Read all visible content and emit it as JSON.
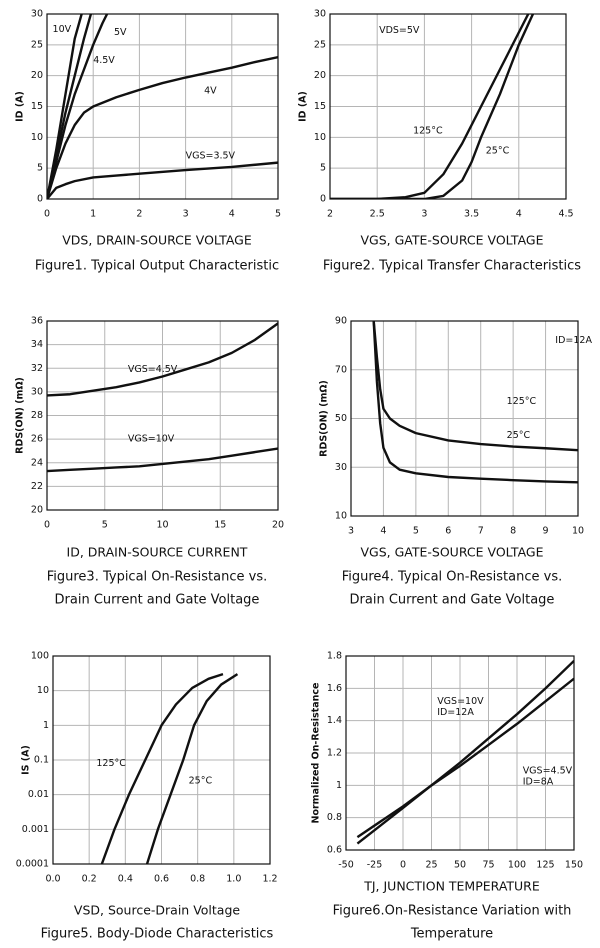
{
  "chart_data": [
    {
      "type": "line",
      "x_label": "VDS, DRAIN-SOURCE VOLTAGE",
      "y_label": "ID (A)",
      "caption": [
        "Figure1. Typical Output Characteristic"
      ],
      "xlim": [
        0,
        5
      ],
      "ylim": [
        0,
        30
      ],
      "xticks": [
        0,
        1,
        2,
        3,
        4,
        5
      ],
      "yticks": [
        0,
        5,
        10,
        15,
        20,
        25,
        30
      ],
      "grid": true,
      "color": "#111111",
      "series": [
        {
          "name": "10V",
          "x": [
            0,
            0.2,
            0.4,
            0.6,
            0.75
          ],
          "values": [
            0,
            8,
            17,
            26,
            30
          ]
        },
        {
          "name": "5V",
          "x": [
            0,
            0.2,
            0.4,
            0.6,
            0.8,
            0.95
          ],
          "values": [
            0,
            7,
            14,
            20,
            26,
            30
          ]
        },
        {
          "name": "4.5V",
          "x": [
            0,
            0.2,
            0.4,
            0.6,
            0.8,
            1.0,
            1.2,
            1.3
          ],
          "values": [
            0,
            6,
            12,
            17,
            21,
            25,
            28.5,
            30
          ]
        },
        {
          "name": "4V",
          "x": [
            0,
            0.2,
            0.4,
            0.6,
            0.8,
            1,
            1.5,
            2,
            2.5,
            3,
            3.5,
            4,
            4.5,
            5
          ],
          "values": [
            0,
            5,
            9,
            12,
            14,
            15,
            16.5,
            17.7,
            18.8,
            19.7,
            20.5,
            21.3,
            22.2,
            23
          ]
        },
        {
          "name": "VGS=3.5V",
          "x": [
            0,
            0.2,
            0.4,
            0.6,
            1,
            1.5,
            2,
            3,
            4,
            5
          ],
          "values": [
            0,
            1.8,
            2.4,
            2.9,
            3.5,
            3.8,
            4.1,
            4.7,
            5.2,
            5.9
          ]
        }
      ]
    },
    {
      "type": "line",
      "x_label": "VGS, GATE-SOURCE VOLTAGE",
      "y_label": "ID (A)",
      "caption": [
        "Figure2. Typical Transfer Characteristics"
      ],
      "annotations": [
        "VDS=5V"
      ],
      "xlim": [
        2,
        4.5
      ],
      "ylim": [
        0,
        30
      ],
      "xticks": [
        2,
        2.5,
        3,
        3.5,
        4,
        4.5
      ],
      "yticks": [
        0,
        5,
        10,
        15,
        20,
        25,
        30
      ],
      "grid": true,
      "color": "#111111",
      "series": [
        {
          "name": "125°C",
          "x": [
            2,
            2.5,
            2.8,
            3,
            3.2,
            3.4,
            3.6,
            3.8,
            4.0,
            4.1
          ],
          "values": [
            0,
            0,
            0.3,
            1,
            4,
            9,
            15,
            21,
            27,
            30
          ]
        },
        {
          "name": "25°C",
          "x": [
            2,
            2.5,
            3,
            3.2,
            3.4,
            3.5,
            3.6,
            3.8,
            4.0,
            4.15
          ],
          "values": [
            0,
            0,
            0,
            0.5,
            3,
            6,
            10,
            17,
            25,
            30
          ]
        }
      ]
    },
    {
      "type": "line",
      "x_label": "ID, DRAIN-SOURCE CURRENT",
      "y_label": "RDS(ON) (mΩ)",
      "caption": [
        "Figure3. Typical On-Resistance vs.",
        "Drain Current and Gate Voltage"
      ],
      "xlim": [
        0,
        20
      ],
      "ylim": [
        20,
        36
      ],
      "xticks": [
        0,
        5,
        10,
        15,
        20
      ],
      "yticks": [
        20,
        22,
        24,
        26,
        28,
        30,
        32,
        34,
        36
      ],
      "grid": true,
      "color": "#111111",
      "series": [
        {
          "name": "VGS=4.5V",
          "x": [
            0,
            2,
            4,
            6,
            8,
            10,
            12,
            14,
            16,
            18,
            20
          ],
          "values": [
            29.7,
            29.8,
            30.1,
            30.4,
            30.8,
            31.3,
            31.9,
            32.5,
            33.3,
            34.4,
            35.8
          ]
        },
        {
          "name": "VGS=10V",
          "x": [
            0,
            2,
            4,
            6,
            8,
            10,
            12,
            14,
            16,
            18,
            20
          ],
          "values": [
            23.3,
            23.4,
            23.5,
            23.6,
            23.7,
            23.9,
            24.1,
            24.3,
            24.6,
            24.9,
            25.2
          ]
        }
      ]
    },
    {
      "type": "line",
      "x_label": "VGS, GATE-SOURCE VOLTAGE",
      "y_label": "RDS(ON) (mΩ)",
      "caption": [
        "Figure4. Typical On-Resistance vs.",
        "Drain Current and Gate Voltage"
      ],
      "annotations": [
        "ID=12A"
      ],
      "xlim": [
        3,
        10
      ],
      "ylim": [
        10,
        90
      ],
      "xticks": [
        3,
        4,
        5,
        6,
        7,
        8,
        9,
        10
      ],
      "yticks": [
        10,
        30,
        50,
        70,
        90
      ],
      "grid": true,
      "color": "#111111",
      "series": [
        {
          "name": "125°C",
          "x": [
            3.7,
            3.8,
            3.9,
            4,
            4.2,
            4.5,
            5,
            6,
            7,
            8,
            9,
            10
          ],
          "values": [
            90,
            75,
            62,
            54,
            50,
            47,
            44,
            41,
            39.5,
            38.5,
            37.8,
            37
          ]
        },
        {
          "name": "25°C",
          "x": [
            3.7,
            3.8,
            3.9,
            4,
            4.2,
            4.5,
            5,
            6,
            7,
            8,
            9,
            10
          ],
          "values": [
            90,
            65,
            48,
            38,
            32,
            29,
            27.5,
            26,
            25.3,
            24.7,
            24.2,
            23.8
          ]
        }
      ]
    },
    {
      "type": "line",
      "x_label": "VSD, Source-Drain Voltage",
      "y_label": "IS (A)",
      "caption": [
        "Figure5. Body-Diode Characteristics"
      ],
      "log_y": true,
      "xlim": [
        0,
        1.2
      ],
      "ylim": [
        0.0001,
        100
      ],
      "xticks": [
        {
          "value": 0,
          "label": "0.0"
        },
        0.2,
        0.4,
        0.6,
        0.8,
        {
          "value": 1,
          "label": "1.0"
        },
        1.2
      ],
      "yticks": [
        0.0001,
        0.001,
        0.01,
        0.1,
        1,
        10,
        100
      ],
      "grid": true,
      "color": "#111111",
      "series": [
        {
          "name": "125°C",
          "x": [
            0.27,
            0.34,
            0.42,
            0.51,
            0.6,
            0.68,
            0.77,
            0.86,
            0.94
          ],
          "values": [
            0.0001,
            0.001,
            0.01,
            0.1,
            1,
            4,
            12,
            22,
            30
          ]
        },
        {
          "name": "25°C",
          "x": [
            0.52,
            0.58,
            0.65,
            0.72,
            0.78,
            0.85,
            0.93,
            1.02
          ],
          "values": [
            0.0001,
            0.001,
            0.01,
            0.1,
            1,
            5,
            15,
            30
          ]
        }
      ]
    },
    {
      "type": "line",
      "x_label": "TJ, JUNCTION    TEMPERATURE",
      "y_label": "Normalized On-Resistance",
      "caption": [
        "Figure6.On-Resistance Variation with",
        "Temperature"
      ],
      "xlim": [
        -50,
        150
      ],
      "ylim": [
        0.6,
        1.8
      ],
      "xticks": [
        -50,
        -25,
        0,
        25,
        50,
        75,
        100,
        125,
        150
      ],
      "yticks": [
        0.6,
        0.8,
        1,
        1.2,
        1.4,
        1.6,
        1.8
      ],
      "grid": true,
      "color": "#111111",
      "series": [
        {
          "name": "VGS=10V",
          "condition": "ID=12A",
          "x": [
            -40,
            0,
            25,
            50,
            75,
            100,
            125,
            150
          ],
          "values": [
            0.64,
            0.86,
            1.0,
            1.14,
            1.29,
            1.44,
            1.6,
            1.77
          ]
        },
        {
          "name": "VGS=4.5V",
          "condition": "ID=8A",
          "x": [
            -40,
            0,
            25,
            50,
            75,
            100,
            125,
            150
          ],
          "values": [
            0.68,
            0.87,
            1.0,
            1.12,
            1.25,
            1.38,
            1.52,
            1.66
          ]
        }
      ]
    }
  ]
}
